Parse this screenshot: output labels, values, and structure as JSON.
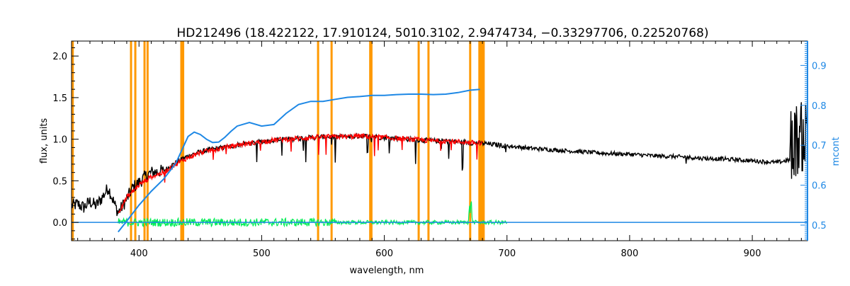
{
  "chart_data": {
    "type": "line",
    "title": "HD212496    (18.422122, 17.910124, 5010.3102, 2.9474734, −0.33297706, 0.22520768)",
    "xlabel": "wavelength, nm",
    "ylabel": "flux, units",
    "y2label": "mcont",
    "xlim": [
      345,
      945
    ],
    "ylim": [
      -0.22,
      2.18
    ],
    "y2lim": [
      0.461,
      0.961
    ],
    "x_ticks": [
      400,
      500,
      600,
      700,
      800,
      900
    ],
    "y_ticks": [
      0.0,
      0.5,
      1.0,
      1.5,
      2.0
    ],
    "y_tick_labels": [
      "0.0",
      "0.5",
      "1.0",
      "1.5",
      "2.0"
    ],
    "y2_ticks": [
      0.5,
      0.6,
      0.7,
      0.8,
      0.9
    ],
    "grid": false,
    "colors": {
      "observed": "#000000",
      "model": "#ff0000",
      "residual": "#00ee55",
      "mcont": "#1e88e5",
      "mask": "#ff9900",
      "axis2": "#1e88e5"
    },
    "masked_wavelengths": [
      346,
      393.5,
      397,
      404.5,
      407,
      434.5,
      436,
      546,
      557,
      588.5,
      589.5,
      628,
      636,
      670,
      677.5,
      679,
      680,
      681
    ],
    "observed_flux": {
      "x": [
        345,
        350,
        355,
        360,
        365,
        370,
        375,
        380,
        383,
        385,
        390,
        395,
        400,
        405,
        410,
        420,
        430,
        440,
        450,
        460,
        470,
        480,
        490,
        500,
        510,
        520,
        530,
        540,
        550,
        560,
        570,
        580,
        590,
        600,
        610,
        620,
        630,
        640,
        650,
        660,
        670,
        680,
        700,
        720,
        740,
        760,
        780,
        800,
        820,
        840,
        860,
        880,
        900,
        920,
        930,
        935,
        940,
        945
      ],
      "y": [
        0.2,
        0.22,
        0.18,
        0.25,
        0.2,
        0.3,
        0.42,
        0.22,
        0.12,
        0.16,
        0.28,
        0.42,
        0.48,
        0.55,
        0.6,
        0.62,
        0.72,
        0.8,
        0.85,
        0.88,
        0.9,
        0.93,
        0.95,
        0.97,
        0.99,
        1.0,
        1.01,
        1.02,
        1.03,
        1.03,
        1.03,
        1.04,
        1.03,
        1.02,
        1.01,
        1.0,
        0.99,
        0.98,
        0.98,
        0.97,
        0.96,
        0.95,
        0.92,
        0.89,
        0.87,
        0.85,
        0.83,
        0.82,
        0.8,
        0.79,
        0.77,
        0.76,
        0.74,
        0.72,
        0.75,
        0.8,
        0.85,
        0.9
      ]
    },
    "model_flux": {
      "x": [
        383,
        390,
        400,
        410,
        420,
        430,
        440,
        450,
        460,
        470,
        480,
        490,
        500,
        510,
        520,
        530,
        540,
        550,
        560,
        570,
        580,
        590,
        600,
        610,
        620,
        630,
        640,
        650,
        660,
        670,
        680
      ],
      "y": [
        0.12,
        0.3,
        0.45,
        0.55,
        0.6,
        0.7,
        0.78,
        0.84,
        0.87,
        0.9,
        0.93,
        0.95,
        0.97,
        0.99,
        1.0,
        1.01,
        1.02,
        1.03,
        1.03,
        1.03,
        1.04,
        1.03,
        1.02,
        1.01,
        1.0,
        0.99,
        0.98,
        0.98,
        0.97,
        0.96,
        0.95
      ]
    },
    "mcont": {
      "x": [
        383,
        390,
        400,
        410,
        420,
        430,
        440,
        445,
        450,
        455,
        460,
        465,
        470,
        475,
        480,
        490,
        500,
        510,
        520,
        530,
        540,
        550,
        560,
        570,
        580,
        590,
        600,
        610,
        620,
        630,
        640,
        650,
        660,
        670,
        678
      ],
      "y2": [
        0.483,
        0.51,
        0.55,
        0.585,
        0.615,
        0.655,
        0.722,
        0.733,
        0.727,
        0.715,
        0.707,
        0.708,
        0.72,
        0.735,
        0.748,
        0.757,
        0.748,
        0.752,
        0.78,
        0.802,
        0.81,
        0.81,
        0.815,
        0.82,
        0.822,
        0.825,
        0.825,
        0.827,
        0.828,
        0.828,
        0.827,
        0.828,
        0.832,
        0.838,
        0.84
      ]
    },
    "residuals": {
      "x": [
        383,
        700,
        945
      ],
      "y": [
        0.0,
        0.0,
        0.0
      ]
    }
  }
}
